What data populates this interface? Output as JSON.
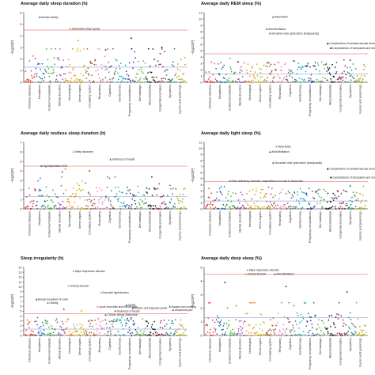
{
  "figure": {
    "category_colors": [
      "#e8392e",
      "#1f5fa8",
      "#3aa43a",
      "#8e4fa3",
      "#f08a1e",
      "#c8b400",
      "#a0522d",
      "#f07eb4",
      "#606060",
      "#18a4b8",
      "#2d3b8f",
      "#5aa84a",
      "#101010",
      "#8a1f3c",
      "#2f7a7a",
      "#b0a000",
      "#9a5ccf",
      "#d4872a",
      "#4a4a9a"
    ]
  },
  "chart_data": [
    {
      "type": "scatter",
      "title": "Average daily sleep duration (h)",
      "ylabel": "−log10(P)",
      "ylim": [
        0,
        6
      ],
      "yticks": [
        0,
        1,
        2,
        3,
        4,
        5,
        6
      ],
      "threshold": 4.5,
      "categories": [
        "Infectious diseases",
        "Neoplasms",
        "Endocrine/metabolic",
        "Mental disorders",
        "Neurological",
        "Sense organs",
        "Circulatory system",
        "Respiratory",
        "Digestive",
        "Genitourinary",
        "Pregnancy complications",
        "Dermatologic",
        "Musculoskeletal",
        "Congenital anomalies",
        "Symptoms",
        "Injuries and poisonings"
      ],
      "annotations": [
        {
          "label": "Morbid obesity",
          "x": 0.09,
          "y": 5.6
        },
        {
          "label": "Obstructive sleep apnea",
          "x": 0.28,
          "y": 4.6
        }
      ],
      "seed": 11,
      "peaks": [
        [
          0.09,
          5.6
        ],
        [
          0.28,
          4.6
        ],
        [
          0.33,
          3.6
        ],
        [
          0.66,
          3.8
        ],
        [
          0.5,
          2.8
        ],
        [
          0.85,
          3.0
        ]
      ]
    },
    {
      "type": "scatter",
      "title": "Average daily REM sleep (%)",
      "ylabel": "−log10(P)",
      "ylim": [
        0,
        11
      ],
      "yticks": [
        0,
        1,
        2,
        3,
        4,
        5,
        6,
        7,
        8,
        9,
        10,
        11
      ],
      "threshold": 4.5,
      "categories": [
        "Infectious diseases",
        "Neoplasms",
        "Endocrine/metabolic",
        "Mental disorders",
        "Neurological",
        "Sense organs",
        "Circulatory system",
        "Respiratory",
        "Digestive",
        "Genitourinary",
        "Pregnancy complications",
        "Dermatologic",
        "Musculoskeletal",
        "Congenital anomalies",
        "Symptoms",
        "Injuries and poisonings"
      ],
      "annotations": [
        {
          "label": "Atrial flutter",
          "x": 0.42,
          "y": 10.3
        },
        {
          "label": "Atrial fibrillation",
          "x": 0.38,
          "y": 8.4
        },
        {
          "label": "Sinoatrial node dysfunction (bradycardia)",
          "x": 0.4,
          "y": 7.7
        },
        {
          "label": "Complications of cardiac/vascular device, implant and graft",
          "x": 0.76,
          "y": 6.1
        },
        {
          "label": "Complications of transplants and reattached limbs",
          "x": 0.78,
          "y": 5.4
        }
      ],
      "seed": 23,
      "peaks": [
        [
          0.42,
          10.3
        ],
        [
          0.38,
          8.4
        ],
        [
          0.4,
          7.7
        ],
        [
          0.76,
          6.1
        ],
        [
          0.78,
          5.4
        ],
        [
          0.9,
          3.5
        ],
        [
          0.2,
          3.2
        ]
      ]
    },
    {
      "type": "scatter",
      "title": "Average daily restless sleep duration (h)",
      "ylabel": "−log10(P)",
      "ylim": [
        0,
        7
      ],
      "yticks": [
        0,
        1,
        2,
        3,
        4,
        5,
        6,
        7
      ],
      "threshold": 4.5,
      "categories": [
        "Infectious diseases",
        "Neoplasms",
        "Endocrine/metabolic",
        "Mental disorders",
        "Neurological",
        "Sense organs",
        "Circulatory system",
        "Respiratory",
        "Digestive",
        "Genitourinary",
        "Pregnancy complications",
        "Dermatologic",
        "Musculoskeletal",
        "Congenital anomalies",
        "Symptoms",
        "Injuries and poisonings"
      ],
      "annotations": [
        {
          "label": "Sleep disorders",
          "x": 0.3,
          "y": 6.0
        },
        {
          "label": "Shortness of breath",
          "x": 0.53,
          "y": 5.2
        },
        {
          "label": "Hypothyroidism NOS",
          "x": 0.1,
          "y": 4.5
        }
      ],
      "seed": 37,
      "peaks": [
        [
          0.3,
          6.0
        ],
        [
          0.53,
          5.2
        ],
        [
          0.1,
          4.5
        ],
        [
          0.25,
          4.2
        ],
        [
          0.4,
          4.0
        ],
        [
          0.23,
          3.9
        ]
      ]
    },
    {
      "type": "scatter",
      "title": "Average daily light sleep (%)",
      "ylabel": "−log10(P)",
      "ylim": [
        0,
        11
      ],
      "yticks": [
        0,
        1,
        2,
        3,
        4,
        5,
        6,
        7,
        8,
        9,
        10,
        11
      ],
      "threshold": 4.5,
      "categories": [
        "Infectious diseases",
        "Neoplasms",
        "Endocrine/metabolic",
        "Mental disorders",
        "Neurological",
        "Sense organs",
        "Circulatory system",
        "Respiratory",
        "Digestive",
        "Genitourinary",
        "Pregnancy complications",
        "Dermatologic",
        "Musculoskeletal",
        "Congenital anomalies",
        "Symptoms",
        "Injuries and poisonings"
      ],
      "annotations": [
        {
          "label": "Atrial flutter",
          "x": 0.44,
          "y": 10.3
        },
        {
          "label": "Atrial fibrillation",
          "x": 0.4,
          "y": 9.4
        },
        {
          "label": "Sinoatrial node dysfunction (bradycardia)",
          "x": 0.42,
          "y": 7.6
        },
        {
          "label": "Complications of cardiac/vascular device, implant and graft",
          "x": 0.76,
          "y": 6.6
        },
        {
          "label": "Complications of transplants and reattached limbs",
          "x": 0.78,
          "y": 5.2
        },
        {
          "label": "Prion deficiency anemias, unspecified or not due to blood loss",
          "x": 0.15,
          "y": 4.6
        }
      ],
      "seed": 51,
      "peaks": [
        [
          0.44,
          10.3
        ],
        [
          0.4,
          9.4
        ],
        [
          0.42,
          7.6
        ],
        [
          0.76,
          6.6
        ],
        [
          0.78,
          5.2
        ],
        [
          0.15,
          4.6
        ],
        [
          0.9,
          3.8
        ]
      ]
    },
    {
      "type": "scatter",
      "title": "Sleep irregularity (h)",
      "ylabel": "−log10(P)",
      "ylim": [
        0,
        14
      ],
      "yticks": [
        0,
        1,
        2,
        3,
        4,
        5,
        6,
        7,
        8,
        9,
        10,
        11,
        12,
        13,
        14
      ],
      "threshold": 4.5,
      "categories": [
        "Infectious diseases",
        "Neoplasms",
        "Endocrine/metabolic",
        "Mental disorders",
        "Neurological",
        "Sense organs",
        "Circulatory system",
        "Respiratory",
        "Digestive",
        "Genitourinary",
        "Pregnancy complications",
        "Dermatologic",
        "Musculoskeletal",
        "Congenital anomalies",
        "Symptoms",
        "Injuries and poisonings"
      ],
      "annotations": [
        {
          "label": "Major depressive disorder",
          "x": 0.3,
          "y": 13.2
        },
        {
          "label": "Anxiety disorder",
          "x": 0.27,
          "y": 10.2
        },
        {
          "label": "Essential hypertension",
          "x": 0.47,
          "y": 8.8
        },
        {
          "label": "Benign neoplasm of colon",
          "x": 0.07,
          "y": 7.4
        },
        {
          "label": "Obesity",
          "x": 0.14,
          "y": 6.7
        },
        {
          "label": "GERD",
          "x": 0.63,
          "y": 6.2
        },
        {
          "label": "Acute bronchitis and bronchiolitis",
          "x": 0.45,
          "y": 5.9
        },
        {
          "label": "Rotator cuff (capsule) sprain",
          "x": 0.67,
          "y": 5.6
        },
        {
          "label": "Nausea and vomiting",
          "x": 0.9,
          "y": 5.9
        },
        {
          "label": "Shortness of breath",
          "x": 0.56,
          "y": 5.0
        },
        {
          "label": "Chronic airway obstruction",
          "x": 0.5,
          "y": 4.2
        },
        {
          "label": "Abdominal pain",
          "x": 0.92,
          "y": 5.2
        }
      ],
      "seed": 67,
      "peaks": [
        [
          0.3,
          13.2
        ],
        [
          0.27,
          10.2
        ],
        [
          0.47,
          8.8
        ],
        [
          0.07,
          7.4
        ],
        [
          0.14,
          6.7
        ],
        [
          0.63,
          6.2
        ],
        [
          0.45,
          5.9
        ],
        [
          0.67,
          5.6
        ],
        [
          0.9,
          5.9
        ],
        [
          0.56,
          5.0
        ],
        [
          0.5,
          4.2
        ],
        [
          0.92,
          5.2
        ],
        [
          0.24,
          5.4
        ],
        [
          0.35,
          5.1
        ]
      ]
    },
    {
      "type": "scatter",
      "title": "Average daily deep sleep (%)",
      "ylabel": "−log10(P)",
      "ylim": [
        0,
        5
      ],
      "yticks": [
        0,
        1,
        2,
        3,
        4,
        5
      ],
      "threshold": 4.5,
      "categories": [
        "Infectious diseases",
        "Neoplasms",
        "Endocrine/metabolic",
        "Mental disorders",
        "Neurological",
        "Sense organs",
        "Circulatory system",
        "Respiratory",
        "Digestive",
        "Genitourinary",
        "Pregnancy complications",
        "Dermatologic",
        "Musculoskeletal",
        "Congenital anomalies",
        "Symptoms",
        "Injuries and poisonings"
      ],
      "annotations": [
        {
          "label": "Major depressive disorder",
          "x": 0.26,
          "y": 4.8
        },
        {
          "label": "Anxiety disorder",
          "x": 0.25,
          "y": 4.5
        },
        {
          "label": "Atrial fibrillation",
          "x": 0.43,
          "y": 4.5
        }
      ],
      "seed": 83,
      "peaks": [
        [
          0.26,
          4.8
        ],
        [
          0.25,
          4.5
        ],
        [
          0.43,
          4.5
        ],
        [
          0.5,
          3.6
        ],
        [
          0.88,
          3.2
        ],
        [
          0.12,
          3.9
        ]
      ]
    }
  ]
}
